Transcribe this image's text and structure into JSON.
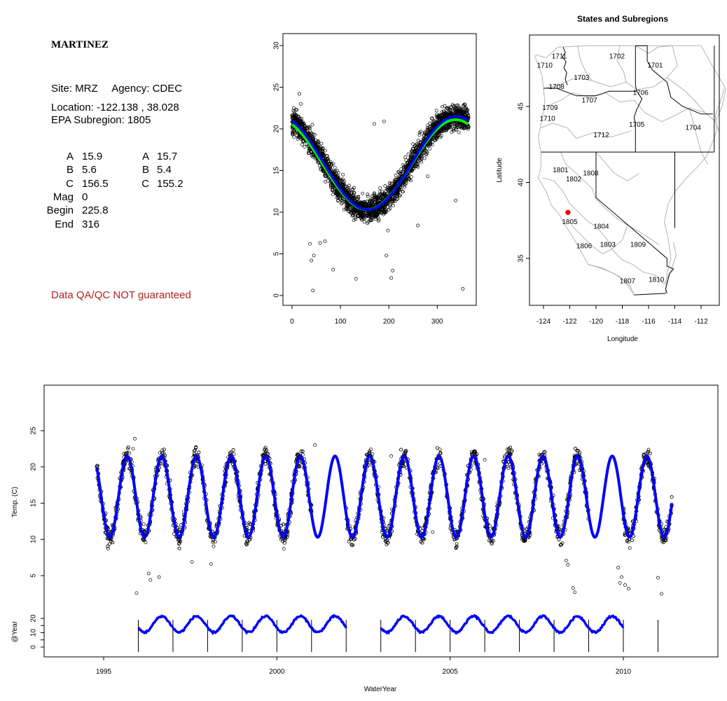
{
  "info": {
    "site_name": "MARTINEZ",
    "site_label": "Site:",
    "site_code": "MRZ",
    "agency_label": "Agency:",
    "agency": "CDEC",
    "location_label": "Location:",
    "location": "-122.138 , 38.028",
    "subregion_label": "EPA Subregion:",
    "subregion": "1805",
    "params_left": [
      {
        "label": "A",
        "value": "15.9"
      },
      {
        "label": "B",
        "value": "5.6"
      },
      {
        "label": "C",
        "value": "156.5"
      },
      {
        "label": "Mag",
        "value": "0"
      },
      {
        "label": "Begin",
        "value": "225.8"
      },
      {
        "label": "End",
        "value": "316"
      }
    ],
    "params_right": [
      {
        "label": "A",
        "value": "15.7"
      },
      {
        "label": "B",
        "value": "5.4"
      },
      {
        "label": "C",
        "value": "155.2"
      }
    ],
    "qa_note": "Data QA/QC NOT guaranteed"
  },
  "chart_data": [
    {
      "type": "scatter",
      "name": "day-of-year",
      "xlim": [
        0,
        365
      ],
      "ylim": [
        0,
        30
      ],
      "x_ticks": [
        0,
        100,
        200,
        300
      ],
      "y_ticks": [
        0,
        5,
        10,
        15,
        20,
        25,
        30
      ],
      "fit_blue": {
        "A": 15.9,
        "B": 5.6,
        "C": 156.5
      },
      "fit_green": {
        "A": 15.7,
        "B": 5.4,
        "C": 155.2
      },
      "outliers": [
        [
          15,
          24.2
        ],
        [
          18,
          23.0
        ],
        [
          42,
          20.5
        ],
        [
          37,
          6.2
        ],
        [
          40,
          4.2
        ],
        [
          43,
          0.6
        ],
        [
          45,
          4.8
        ],
        [
          58,
          6.3
        ],
        [
          68,
          6.5
        ],
        [
          85,
          3.1
        ],
        [
          132,
          2.0
        ],
        [
          170,
          20.6
        ],
        [
          190,
          20.9
        ],
        [
          195,
          4.8
        ],
        [
          198,
          7.8
        ],
        [
          205,
          2.1
        ],
        [
          208,
          3.0
        ],
        [
          260,
          8.4
        ],
        [
          280,
          14.3
        ],
        [
          338,
          11.4
        ],
        [
          353,
          0.8
        ],
        [
          8,
          22.3
        ],
        [
          25,
          19.8
        ]
      ],
      "colors": {
        "points": "#000000",
        "fit_blue": "#0000ff",
        "fit_green": "#00ee00"
      }
    },
    {
      "type": "map",
      "title": "States and Subregions",
      "xlabel": "Longitude",
      "ylabel": "Latitude",
      "xlim": [
        -125.3,
        -110.8
      ],
      "ylim": [
        32.3,
        49.5
      ],
      "x_ticks": [
        -124,
        -122,
        -120,
        -118,
        -116,
        -114,
        -112
      ],
      "y_ticks": [
        35,
        40,
        45
      ],
      "subregion_labels": [
        {
          "text": "1711",
          "lon": -122.8,
          "lat": 48.3
        },
        {
          "text": "1702",
          "lon": -118.4,
          "lat": 48.3
        },
        {
          "text": "1701",
          "lon": -115.5,
          "lat": 47.7
        },
        {
          "text": "1710",
          "lon": -123.9,
          "lat": 47.7
        },
        {
          "text": "1703",
          "lon": -121.1,
          "lat": 46.9
        },
        {
          "text": "1708",
          "lon": -123.0,
          "lat": 46.3
        },
        {
          "text": "1706",
          "lon": -116.6,
          "lat": 45.9
        },
        {
          "text": "1707",
          "lon": -120.5,
          "lat": 45.4
        },
        {
          "text": "1709",
          "lon": -123.5,
          "lat": 44.9
        },
        {
          "text": "1710",
          "lon": -123.7,
          "lat": 44.2
        },
        {
          "text": "1705",
          "lon": -116.9,
          "lat": 43.8
        },
        {
          "text": "1704",
          "lon": -112.6,
          "lat": 43.6
        },
        {
          "text": "1712",
          "lon": -119.6,
          "lat": 43.1
        },
        {
          "text": "1801",
          "lon": -122.7,
          "lat": 40.8
        },
        {
          "text": "1808",
          "lon": -120.4,
          "lat": 40.6
        },
        {
          "text": "1802",
          "lon": -121.7,
          "lat": 40.2
        },
        {
          "text": "1805",
          "lon": -122.0,
          "lat": 37.4
        },
        {
          "text": "1804",
          "lon": -119.6,
          "lat": 37.1
        },
        {
          "text": "1806",
          "lon": -120.9,
          "lat": 35.8
        },
        {
          "text": "1803",
          "lon": -119.1,
          "lat": 35.9
        },
        {
          "text": "1809",
          "lon": -116.8,
          "lat": 35.9
        },
        {
          "text": "1810",
          "lon": -115.4,
          "lat": 33.6
        },
        {
          "text": "1807",
          "lon": -117.6,
          "lat": 33.5
        }
      ],
      "site_marker": {
        "lon": -122.138,
        "lat": 38.028,
        "color": "#ff0000"
      }
    },
    {
      "type": "line",
      "name": "timeseries",
      "xlabel": "WaterYear",
      "ylabel": "Temp. (C)",
      "ylabel_bottom": "@Year",
      "xlim": [
        1993.3,
        2012.6
      ],
      "x_ticks": [
        1995,
        2000,
        2005,
        2010
      ],
      "y_ticks": [
        5,
        10,
        15,
        20,
        25
      ],
      "y_ticks_bottom": [
        0,
        10,
        20
      ],
      "y_ticks_bottom_labels": [
        "0",
        "10",
        "20"
      ],
      "series_start": 1994.8,
      "series_end": 2011.4,
      "data_gaps": [
        [
          2001.0,
          2002.0
        ],
        [
          2009.0,
          2010.0
        ]
      ],
      "annual_years": [
        1996,
        1997,
        1998,
        1999,
        2000,
        2001,
        2002,
        2003,
        2004,
        2005,
        2006,
        2007,
        2008,
        2009,
        2010,
        2011
      ],
      "annual_missing": [
        2002,
        2010
      ],
      "outliers": [
        [
          1995.95,
          2.6
        ],
        [
          1996.3,
          5.3
        ],
        [
          1996.35,
          4.4
        ],
        [
          1996.6,
          4.8
        ],
        [
          1997.55,
          6.9
        ],
        [
          1998.1,
          6.6
        ],
        [
          2000.2,
          8.7
        ],
        [
          2001.1,
          23.0
        ],
        [
          2003.3,
          21.5
        ],
        [
          2004.5,
          11.0
        ],
        [
          2006.0,
          21.0
        ],
        [
          2008.35,
          7.1
        ],
        [
          2008.4,
          6.5
        ],
        [
          2008.55,
          3.3
        ],
        [
          2008.6,
          2.7
        ],
        [
          2009.85,
          6.1
        ],
        [
          2009.9,
          4.0
        ],
        [
          2009.95,
          4.8
        ],
        [
          2010.05,
          3.7
        ],
        [
          2010.15,
          3.2
        ],
        [
          2011.1,
          2.5
        ],
        [
          2011.0,
          4.7
        ],
        [
          1995.9,
          23.9
        ],
        [
          1995.85,
          22.5
        ]
      ],
      "colors": {
        "points": "#000000",
        "fit": "#0000ff"
      }
    }
  ]
}
